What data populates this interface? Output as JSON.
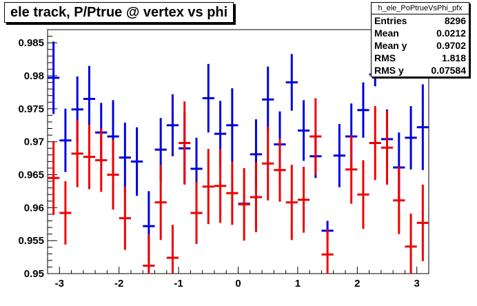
{
  "chart_data": {
    "type": "scatter",
    "title": "ele track, P/Ptrue @ vertex vs phi",
    "xlabel": "",
    "ylabel": "",
    "xlim": [
      -3.2,
      3.2
    ],
    "ylim": [
      0.95,
      0.987
    ],
    "x_ticks": [
      -3,
      -2,
      -1,
      0,
      1,
      2,
      3
    ],
    "x_tick_labels": [
      "-3",
      "-2",
      "-1",
      "0",
      "1",
      "2",
      "3"
    ],
    "y_ticks": [
      0.95,
      0.955,
      0.96,
      0.965,
      0.97,
      0.975,
      0.98,
      0.985
    ],
    "y_tick_labels": [
      "0.95",
      "0.955",
      "0.96",
      "0.965",
      "0.97",
      "0.975",
      "0.98",
      "0.985"
    ],
    "grid": false,
    "bin_half_width": 0.1,
    "series": [
      {
        "color": "#0000dd",
        "points": [
          {
            "x": -3.1,
            "y": 0.9797,
            "err": 0.0055
          },
          {
            "x": -2.9,
            "y": 0.9702,
            "err": 0.0048
          },
          {
            "x": -2.7,
            "y": 0.9749,
            "err": 0.005
          },
          {
            "x": -2.5,
            "y": 0.9765,
            "err": 0.005
          },
          {
            "x": -2.3,
            "y": 0.9714,
            "err": 0.0045
          },
          {
            "x": -2.1,
            "y": 0.9708,
            "err": 0.0055
          },
          {
            "x": -1.9,
            "y": 0.9676,
            "err": 0.0053
          },
          {
            "x": -1.7,
            "y": 0.967,
            "err": 0.0052
          },
          {
            "x": -1.5,
            "y": 0.9572,
            "err": 0.0053
          },
          {
            "x": -1.3,
            "y": 0.9688,
            "err": 0.0048
          },
          {
            "x": -1.1,
            "y": 0.9725,
            "err": 0.0047
          },
          {
            "x": -0.9,
            "y": 0.969,
            "err": 0.0054
          },
          {
            "x": -0.7,
            "y": 0.9659,
            "err": 0.0047
          },
          {
            "x": -0.5,
            "y": 0.9766,
            "err": 0.0052
          },
          {
            "x": -0.3,
            "y": 0.9712,
            "err": 0.005
          },
          {
            "x": -0.1,
            "y": 0.9725,
            "err": 0.0056
          },
          {
            "x": 0.1,
            "y": 0.9606,
            "err": 0.0003
          },
          {
            "x": 0.3,
            "y": 0.9681,
            "err": 0.0053
          },
          {
            "x": 0.5,
            "y": 0.9764,
            "err": 0.005
          },
          {
            "x": 0.7,
            "y": 0.9696,
            "err": 0.005
          },
          {
            "x": 0.9,
            "y": 0.979,
            "err": 0.0043
          },
          {
            "x": 1.1,
            "y": 0.9717,
            "err": 0.0046
          },
          {
            "x": 1.3,
            "y": 0.9678,
            "err": 0.0033
          },
          {
            "x": 1.5,
            "y": 0.9565,
            "err": 0.0015
          },
          {
            "x": 1.7,
            "y": 0.9679,
            "err": 0.0048
          },
          {
            "x": 1.9,
            "y": 0.9708,
            "err": 0.005
          },
          {
            "x": 2.1,
            "y": 0.9748,
            "err": 0.0042
          },
          {
            "x": 2.3,
            "y": 0.9802,
            "err": 0.0018
          },
          {
            "x": 2.5,
            "y": 0.9704,
            "err": 0.0045
          },
          {
            "x": 2.7,
            "y": 0.9661,
            "err": 0.0053
          },
          {
            "x": 2.9,
            "y": 0.9706,
            "err": 0.0048
          },
          {
            "x": 3.1,
            "y": 0.9722,
            "err": 0.0065
          }
        ]
      },
      {
        "color": "#ee0000",
        "points": [
          {
            "x": -3.1,
            "y": 0.9645,
            "err": 0.0056
          },
          {
            "x": -2.9,
            "y": 0.9592,
            "err": 0.0048
          },
          {
            "x": -2.7,
            "y": 0.9682,
            "err": 0.0051
          },
          {
            "x": -2.5,
            "y": 0.9677,
            "err": 0.0049
          },
          {
            "x": -2.3,
            "y": 0.9672,
            "err": 0.0048
          },
          {
            "x": -2.1,
            "y": 0.965,
            "err": 0.0053
          },
          {
            "x": -1.9,
            "y": 0.9584,
            "err": 0.0048
          },
          {
            "x": -1.5,
            "y": 0.9512,
            "err": 0.0048
          },
          {
            "x": -1.3,
            "y": 0.9608,
            "err": 0.0057
          },
          {
            "x": -1.1,
            "y": 0.9524,
            "err": 0.005
          },
          {
            "x": -0.9,
            "y": 0.9698,
            "err": 0.0063
          },
          {
            "x": -0.7,
            "y": 0.9592,
            "err": 0.0047
          },
          {
            "x": -0.5,
            "y": 0.9632,
            "err": 0.0057
          },
          {
            "x": -0.3,
            "y": 0.9633,
            "err": 0.0056
          },
          {
            "x": -0.1,
            "y": 0.9622,
            "err": 0.0048
          },
          {
            "x": 0.1,
            "y": 0.9605,
            "err": 0.0055
          },
          {
            "x": 0.3,
            "y": 0.9616,
            "err": 0.0053
          },
          {
            "x": 0.5,
            "y": 0.9667,
            "err": 0.0056
          },
          {
            "x": 0.7,
            "y": 0.9657,
            "err": 0.0048
          },
          {
            "x": 0.9,
            "y": 0.9608,
            "err": 0.0057
          },
          {
            "x": 1.1,
            "y": 0.9612,
            "err": 0.005
          },
          {
            "x": 1.3,
            "y": 0.9708,
            "err": 0.0058
          },
          {
            "x": 1.5,
            "y": 0.9529,
            "err": 0.0038
          },
          {
            "x": 1.9,
            "y": 0.9658,
            "err": 0.0052
          },
          {
            "x": 2.1,
            "y": 0.962,
            "err": 0.0052
          },
          {
            "x": 2.3,
            "y": 0.9698,
            "err": 0.0056
          },
          {
            "x": 2.5,
            "y": 0.9691,
            "err": 0.0056
          },
          {
            "x": 2.7,
            "y": 0.9611,
            "err": 0.0051
          },
          {
            "x": 2.9,
            "y": 0.9541,
            "err": 0.005
          },
          {
            "x": 3.1,
            "y": 0.9577,
            "err": 0.0058
          }
        ]
      }
    ]
  },
  "stats": {
    "name": "h_ele_PoPtrueVsPhi_pfx",
    "rows": [
      {
        "label": "Entries",
        "value": "8296"
      },
      {
        "label": "Mean",
        "value": "0.0212"
      },
      {
        "label": "Mean y",
        "value": "0.9702"
      },
      {
        "label": "RMS",
        "value": "1.818"
      },
      {
        "label": "RMS y",
        "value": "0.07584"
      }
    ]
  }
}
